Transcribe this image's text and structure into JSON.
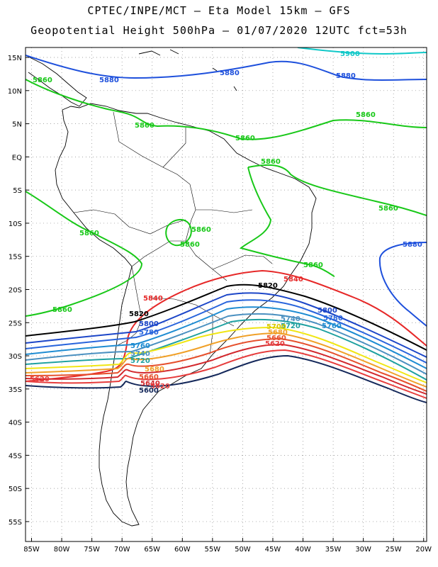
{
  "title_line1": "CPTEC/INPE/MCT –  Eta Model 15km – GFS",
  "title_line2": "Geopotential Height 500hPa – 01/07/2020 12UTC fct=53h",
  "lat_labels": [
    "15N",
    "10N",
    "5N",
    "EQ",
    "5S",
    "10S",
    "15S",
    "20S",
    "25S",
    "30S",
    "35S",
    "40S",
    "45S",
    "50S",
    "55S"
  ],
  "lon_labels": [
    "85W",
    "80W",
    "75W",
    "70W",
    "65W",
    "60W",
    "55W",
    "50W",
    "45W",
    "40W",
    "35W",
    "30W",
    "25W",
    "20W"
  ],
  "map_extent": {
    "lon_min": -86,
    "lon_max": -19.5,
    "lat_min": -58,
    "lat_max": 16.5
  },
  "grid": true,
  "contours": [
    {
      "value": 5900,
      "color": "#10c8c8",
      "label": "5900"
    },
    {
      "value": 5880,
      "color": "#1e50dc",
      "label": "5880"
    },
    {
      "value": 5860,
      "color": "#18c818",
      "label": "5860"
    },
    {
      "value": 5840,
      "color": "#e62828",
      "label": "5840"
    },
    {
      "value": 5820,
      "color": "#000000",
      "label": "5820"
    },
    {
      "value": 5800,
      "color": "#1c46c8",
      "label": "5800"
    },
    {
      "value": 5780,
      "color": "#2864dc",
      "label": "5780"
    },
    {
      "value": 5760,
      "color": "#1e8cd2",
      "label": "5760"
    },
    {
      "value": 5740,
      "color": "#4a90c0",
      "label": "5740"
    },
    {
      "value": 5720,
      "color": "#1ea0a0",
      "label": "5720"
    },
    {
      "value": 5700,
      "color": "#f0e614",
      "label": "5700"
    },
    {
      "value": 5680,
      "color": "#f0a028",
      "label": "5680"
    },
    {
      "value": 5660,
      "color": "#e6502d",
      "label": "5660"
    },
    {
      "value": 5640,
      "color": "#d2282d",
      "label": "5640"
    },
    {
      "value": 5620,
      "color": "#e63c3c",
      "label": "5620"
    },
    {
      "value": 5600,
      "color": "#14285a",
      "label": "5600"
    }
  ]
}
